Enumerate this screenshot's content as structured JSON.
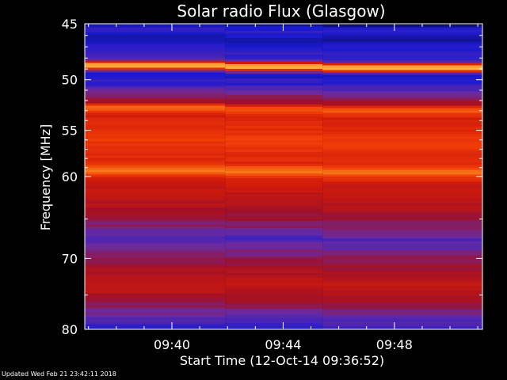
{
  "chart_data": {
    "type": "heatmap",
    "title": "Solar radio Flux (Glasgow)",
    "ylabel": "Frequency [MHz]",
    "xlabel": "Start Time (12-Oct-14 09:36:52)",
    "y_scale": "log",
    "y_direction": "down",
    "ylim": [
      45,
      80
    ],
    "yticks": [
      45,
      50,
      55,
      60,
      70,
      80
    ],
    "ytick_labels": [
      "45",
      "50",
      "55",
      "60",
      "70",
      "80"
    ],
    "xlim": [
      "09:36:52",
      "09:51:10"
    ],
    "xticks": [
      "09:40",
      "09:44",
      "09:48"
    ],
    "x_segments": [
      "09:36:52",
      "09:41:55",
      "09:45:25",
      "09:51:10"
    ],
    "grid": false,
    "colormap": [
      "#0a0a50",
      "#1a1ad2",
      "#6a2aa0",
      "#a01028",
      "#d01a0a",
      "#f03a08",
      "#f87818",
      "#ffb040",
      "#fff6d8"
    ],
    "band_profile": [
      {
        "mhz": 45.0,
        "level": 0.06
      },
      {
        "mhz": 45.6,
        "level": 0.16
      },
      {
        "mhz": 46.3,
        "level": 0.08
      },
      {
        "mhz": 47.0,
        "level": 0.13
      },
      {
        "mhz": 48.2,
        "level": 0.18
      },
      {
        "mhz": 48.8,
        "level": 1.0
      },
      {
        "mhz": 49.4,
        "level": 0.12
      },
      {
        "mhz": 50.5,
        "level": 0.16
      },
      {
        "mhz": 51.4,
        "level": 0.28
      },
      {
        "mhz": 52.3,
        "level": 0.4
      },
      {
        "mhz": 52.8,
        "level": 0.72
      },
      {
        "mhz": 53.6,
        "level": 0.52
      },
      {
        "mhz": 56.0,
        "level": 0.62
      },
      {
        "mhz": 58.5,
        "level": 0.55
      },
      {
        "mhz": 59.4,
        "level": 0.76
      },
      {
        "mhz": 60.5,
        "level": 0.5
      },
      {
        "mhz": 63.5,
        "level": 0.42
      },
      {
        "mhz": 66.0,
        "level": 0.3
      },
      {
        "mhz": 67.5,
        "level": 0.2
      },
      {
        "mhz": 70.0,
        "level": 0.33
      },
      {
        "mhz": 73.8,
        "level": 0.48
      },
      {
        "mhz": 76.0,
        "level": 0.36
      },
      {
        "mhz": 78.5,
        "level": 0.22
      },
      {
        "mhz": 80.0,
        "level": 0.14
      }
    ]
  },
  "footer": {
    "updated": "Updated Wed Feb 21 23:42:11 2018"
  }
}
